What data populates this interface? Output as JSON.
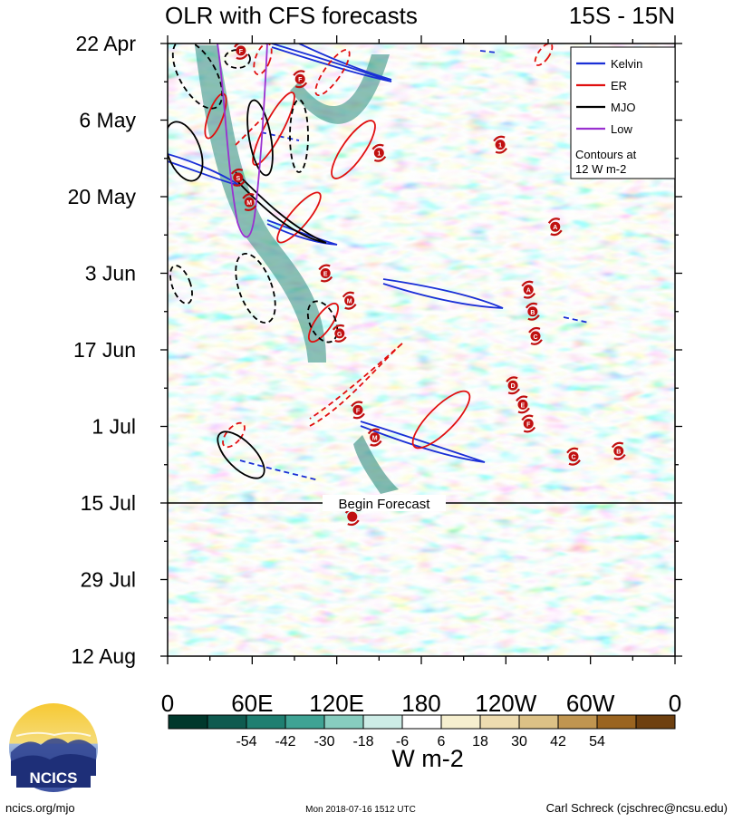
{
  "chart_data": {
    "type": "heatmap",
    "title": "OLR with CFS forecasts",
    "region": "15S - 15N",
    "x_ticks": [
      "0",
      "60E",
      "120E",
      "180",
      "120W",
      "60W",
      "0"
    ],
    "x_tick_lon": [
      0,
      60,
      120,
      180,
      240,
      300,
      360
    ],
    "y_ticks": [
      "22 Apr",
      "6 May",
      "20 May",
      "3 Jun",
      "17 Jun",
      "1 Jul",
      "15 Jul",
      "29 Jul",
      "12 Aug"
    ],
    "y_tick_day": [
      0,
      14,
      28,
      42,
      56,
      70,
      84,
      98,
      112
    ],
    "ylim_day": [
      0,
      112
    ],
    "xlim_lon": [
      0,
      360
    ],
    "forecast": {
      "label": "Begin Forecast",
      "day": 84
    },
    "legend": {
      "position": "top-right",
      "entries": [
        {
          "name": "Kelvin",
          "color": "#1a2fd6"
        },
        {
          "name": "ER",
          "color": "#e01010"
        },
        {
          "name": "MJO",
          "color": "#000000"
        },
        {
          "name": "Low",
          "color": "#9a30d0"
        }
      ],
      "note_line1": "Contours at",
      "note_line2": "12 W m-2"
    },
    "colorbar": {
      "unit": "W m-2",
      "labels": [
        "-54",
        "-42",
        "-30",
        "-18",
        "-6",
        "6",
        "18",
        "30",
        "42",
        "54"
      ],
      "colors": [
        "#00382c",
        "#0f5a4f",
        "#1f7f71",
        "#3fa394",
        "#87cdbf",
        "#cdece6",
        "#ffffff",
        "#f6efcf",
        "#eedcb0",
        "#dcc186",
        "#c09550",
        "#9a6420",
        "#6e4010"
      ]
    },
    "storms": [
      {
        "label": "F",
        "lon": 52,
        "day": 1.3
      },
      {
        "label": "F",
        "lon": 94,
        "day": 6.5
      },
      {
        "label": "1",
        "lon": 236,
        "day": 18.5
      },
      {
        "label": "1",
        "lon": 150,
        "day": 20
      },
      {
        "label": "S",
        "lon": 50,
        "day": 24.5
      },
      {
        "label": "M",
        "lon": 58,
        "day": 29
      },
      {
        "label": "A",
        "lon": 275,
        "day": 33.5
      },
      {
        "label": "E",
        "lon": 112,
        "day": 42
      },
      {
        "label": "A",
        "lon": 256,
        "day": 45
      },
      {
        "label": "M",
        "lon": 129,
        "day": 47
      },
      {
        "label": "B",
        "lon": 259,
        "day": 49
      },
      {
        "label": "G",
        "lon": 122,
        "day": 53
      },
      {
        "label": "C",
        "lon": 261,
        "day": 53.5
      },
      {
        "label": "D",
        "lon": 245,
        "day": 62.5
      },
      {
        "label": "F",
        "lon": 135,
        "day": 67
      },
      {
        "label": "E",
        "lon": 252,
        "day": 66
      },
      {
        "label": "F",
        "lon": 256,
        "day": 69.5
      },
      {
        "label": "M",
        "lon": 147,
        "day": 72
      },
      {
        "label": "C",
        "lon": 288,
        "day": 75.5
      },
      {
        "label": "B",
        "lon": 320,
        "day": 74.5
      },
      {
        "label": "",
        "lon": 131,
        "day": 86.5
      }
    ]
  },
  "footer": {
    "logo_text": "NCICS",
    "website": "ncics.org/mjo",
    "timestamp": "Mon 2018-07-16 1512 UTC",
    "author": "Carl Schreck (cjschrec@ncsu.edu)"
  }
}
